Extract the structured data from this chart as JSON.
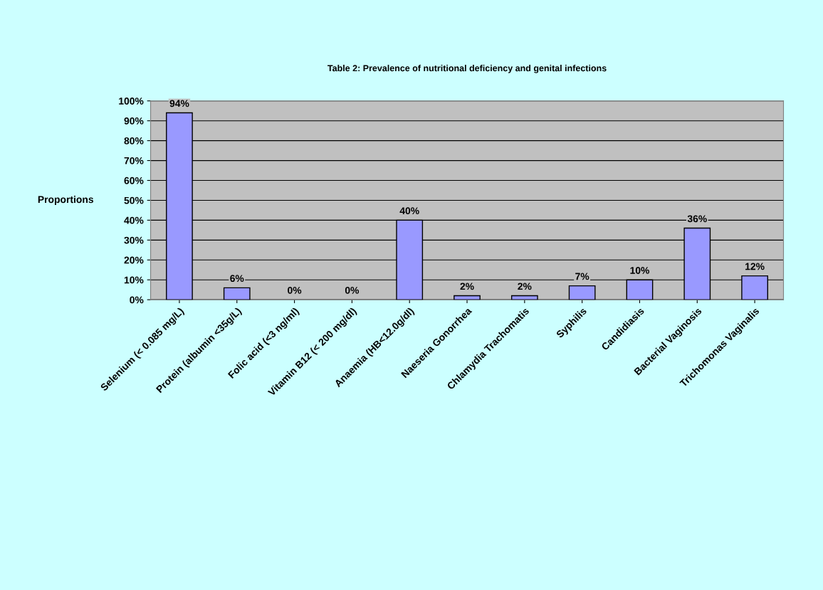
{
  "chart_data": {
    "type": "bar",
    "title": "Table 2: Prevalence of nutritional deficiency and genital infections",
    "ylabel": "Proportions",
    "categories": [
      "Selenium (< 0.085 mg/L)",
      "Protein (albumin <35g/L)",
      "Folic acid (<3 ng/ml)",
      "Vitamin B12 (< 200 mg/dl)",
      "Anaemia (HB<12.0g/dl)",
      "Naeseria Gonorrhea",
      "Chlamydia Trachomatis",
      "Syphilis",
      "Candidiasis",
      "Bacterial Vaginosis",
      "Trichomonas Vaginalis"
    ],
    "values": [
      94,
      6,
      0,
      0,
      40,
      2,
      2,
      7,
      10,
      36,
      12
    ],
    "value_labels": [
      "94%",
      "6%",
      "0%",
      "0%",
      "40%",
      "2%",
      "2%",
      "7%",
      "10%",
      "36%",
      "12%"
    ],
    "color": "#9999ff",
    "ylim": [
      0,
      100
    ],
    "yticks": [
      {
        "value": 0,
        "label": "0%"
      },
      {
        "value": 10,
        "label": "10%"
      },
      {
        "value": 20,
        "label": "20%"
      },
      {
        "value": 30,
        "label": "30%"
      },
      {
        "value": 40,
        "label": "40%"
      },
      {
        "value": 50,
        "label": "50%"
      },
      {
        "value": 60,
        "label": "60%"
      },
      {
        "value": 70,
        "label": "70%"
      },
      {
        "value": 80,
        "label": "80%"
      },
      {
        "value": 90,
        "label": "90%"
      },
      {
        "value": 100,
        "label": "100%"
      }
    ],
    "grid": "y",
    "legend": false
  }
}
